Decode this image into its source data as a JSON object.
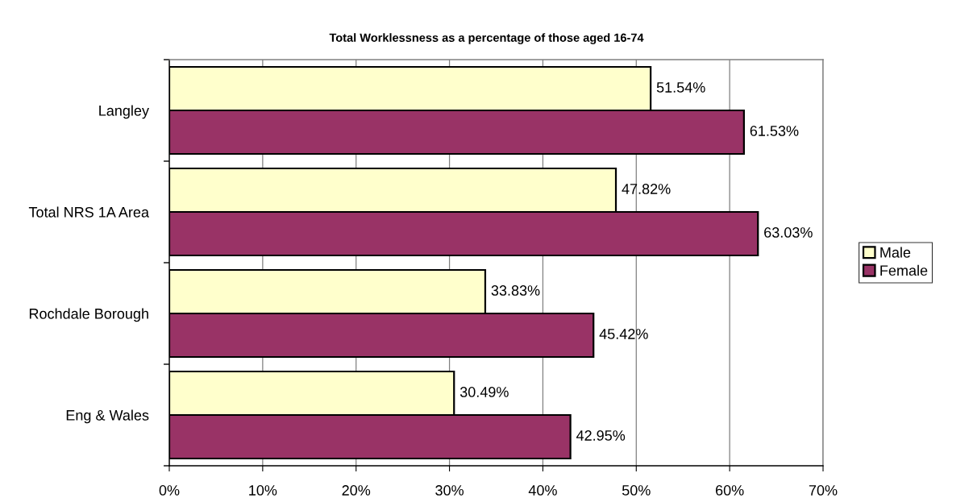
{
  "chart_data": {
    "type": "bar",
    "orientation": "horizontal",
    "title": "Total Worklessness as a percentage of those aged 16-74",
    "categories": [
      "Langley",
      "Total NRS 1A Area",
      "Rochdale Borough",
      "Eng & Wales"
    ],
    "series": [
      {
        "name": "Male",
        "color": "#ffffcc",
        "values": [
          51.54,
          47.82,
          33.83,
          30.49
        ],
        "value_labels": [
          "51.54%",
          "47.82%",
          "33.83%",
          "30.49%"
        ]
      },
      {
        "name": "Female",
        "color": "#993366",
        "values": [
          61.53,
          63.03,
          45.42,
          42.95
        ],
        "value_labels": [
          "61.53%",
          "63.03%",
          "45.42%",
          "42.95%"
        ]
      }
    ],
    "xlim": [
      0,
      70
    ],
    "xticks": [
      {
        "value": 0,
        "label": "0%"
      },
      {
        "value": 10,
        "label": "10%"
      },
      {
        "value": 20,
        "label": "20%"
      },
      {
        "value": 30,
        "label": "30%"
      },
      {
        "value": 40,
        "label": "40%"
      },
      {
        "value": 50,
        "label": "50%"
      },
      {
        "value": 60,
        "label": "60%"
      },
      {
        "value": 70,
        "label": "70%"
      }
    ],
    "grid": "x",
    "legend": "right"
  }
}
